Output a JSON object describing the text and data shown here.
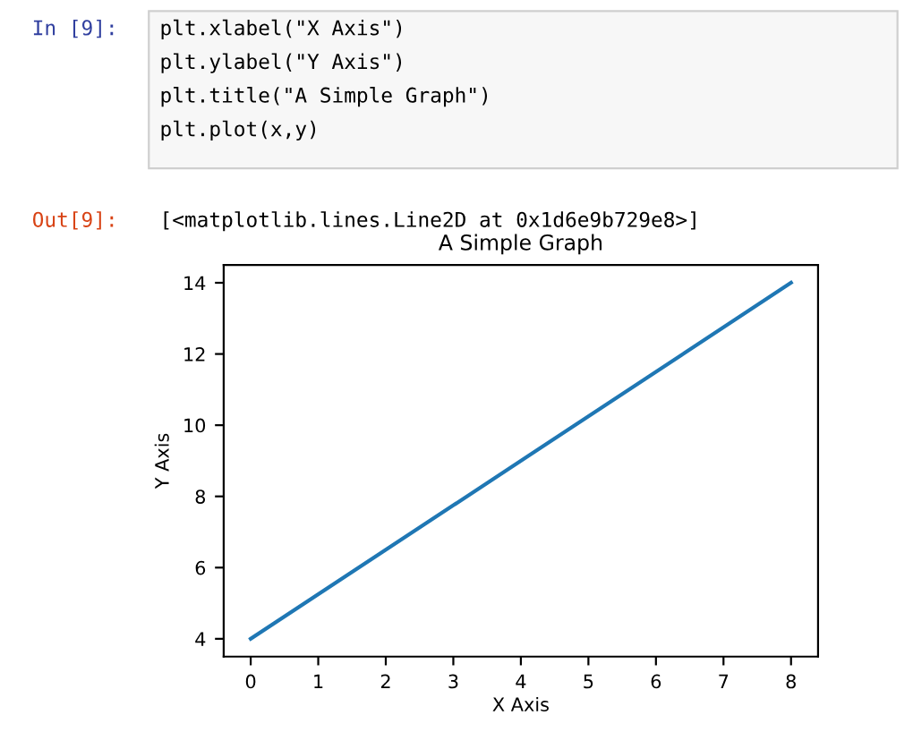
{
  "chart_data": {
    "type": "line",
    "title": "A Simple Graph",
    "xlabel": "X Axis",
    "ylabel": "Y Axis",
    "x": [
      0,
      8
    ],
    "series": [
      {
        "color": "#1f77b4",
        "values": [
          4,
          14
        ]
      }
    ],
    "xlim": [
      -0.4,
      8.4
    ],
    "ylim": [
      3.5,
      14.5
    ],
    "xticks": [
      0,
      1,
      2,
      3,
      4,
      5,
      6,
      7,
      8
    ],
    "yticks": [
      4,
      6,
      8,
      10,
      12,
      14
    ],
    "grid": false,
    "legend": false,
    "marker": "none",
    "line_style": "solid",
    "annotations": [
      "In [9]:",
      "plt.xlabel(\"X Axis\")",
      "plt.ylabel(\"Y Axis\")",
      "plt.title(\"A Simple Graph\")",
      "plt.plot(x,y)",
      "Out[9]:",
      "[<matplotlib.lines.Line2D at 0x1d6e9b729e8>]"
    ]
  }
}
